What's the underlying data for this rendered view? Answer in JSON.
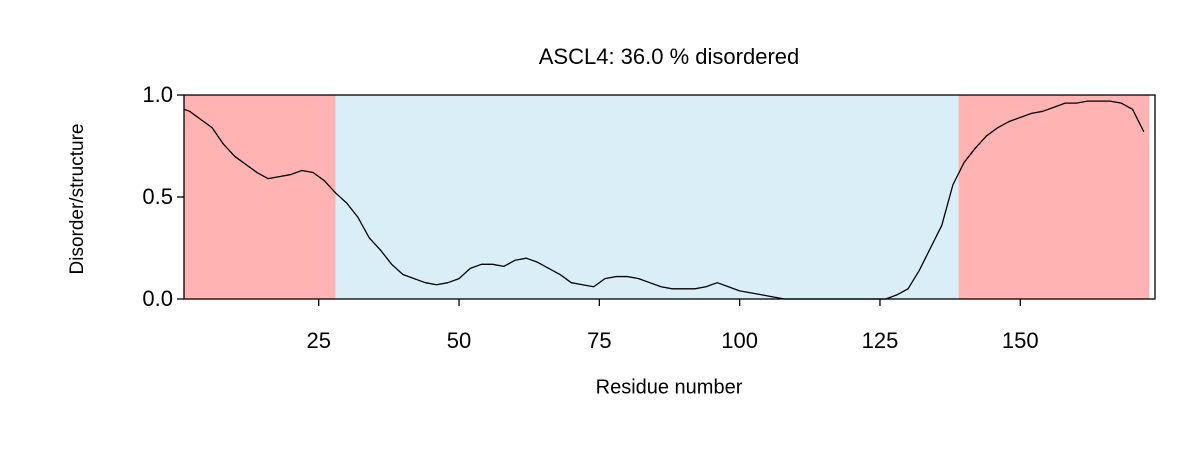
{
  "chart_data": {
    "type": "line",
    "title": "ASCL4: 36.0 % disordered",
    "x_label": "Residue number",
    "y_label": "Disorder/structure",
    "xlim": [
      1,
      174
    ],
    "ylim": [
      0,
      1
    ],
    "xticks": [
      25,
      50,
      75,
      100,
      125,
      150
    ],
    "yticks": [
      {
        "value": 0,
        "label": "0.0"
      },
      0.5,
      {
        "value": 1,
        "label": "1.0"
      }
    ],
    "regions": [
      {
        "start": 1,
        "end": 28,
        "color": "#ffb3b3"
      },
      {
        "start": 28,
        "end": 139,
        "color": "#d9eef7"
      },
      {
        "start": 139,
        "end": 173,
        "color": "#ffb3b3"
      }
    ],
    "color": "#000000",
    "x": [
      1,
      2,
      4,
      6,
      8,
      10,
      12,
      14,
      16,
      18,
      20,
      22,
      24,
      26,
      28,
      30,
      32,
      34,
      36,
      38,
      40,
      42,
      44,
      46,
      48,
      50,
      52,
      54,
      56,
      58,
      60,
      62,
      64,
      66,
      68,
      70,
      72,
      74,
      76,
      78,
      80,
      82,
      84,
      86,
      88,
      90,
      92,
      94,
      96,
      98,
      100,
      102,
      104,
      106,
      108,
      110,
      112,
      114,
      116,
      118,
      120,
      122,
      124,
      126,
      128,
      130,
      132,
      134,
      136,
      138,
      140,
      142,
      144,
      146,
      148,
      150,
      152,
      154,
      156,
      158,
      160,
      162,
      164,
      166,
      168,
      170,
      172
    ],
    "values": [
      0.93,
      0.92,
      0.88,
      0.84,
      0.76,
      0.7,
      0.66,
      0.62,
      0.59,
      0.6,
      0.61,
      0.63,
      0.62,
      0.58,
      0.52,
      0.47,
      0.4,
      0.3,
      0.24,
      0.17,
      0.12,
      0.1,
      0.08,
      0.07,
      0.08,
      0.1,
      0.15,
      0.17,
      0.17,
      0.16,
      0.19,
      0.2,
      0.18,
      0.15,
      0.12,
      0.08,
      0.07,
      0.06,
      0.1,
      0.11,
      0.11,
      0.1,
      0.08,
      0.06,
      0.05,
      0.05,
      0.05,
      0.06,
      0.08,
      0.06,
      0.04,
      0.03,
      0.02,
      0.01,
      0,
      0,
      0,
      0,
      0,
      0,
      0,
      0,
      0,
      0,
      0.02,
      0.05,
      0.14,
      0.25,
      0.36,
      0.56,
      0.67,
      0.74,
      0.8,
      0.84,
      0.87,
      0.89,
      0.91,
      0.92,
      0.94,
      0.96,
      0.96,
      0.97,
      0.97,
      0.97,
      0.96,
      0.93,
      0.82
    ]
  }
}
